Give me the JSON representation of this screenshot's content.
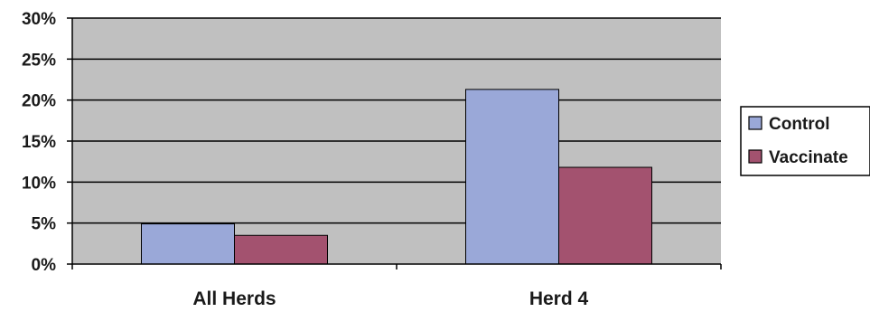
{
  "chart_data": {
    "type": "bar",
    "categories": [
      "All Herds",
      "Herd 4"
    ],
    "series": [
      {
        "name": "Control",
        "values": [
          4.9,
          21.3
        ],
        "color": "#9aa8d8"
      },
      {
        "name": "Vaccinate",
        "values": [
          3.5,
          11.8
        ],
        "color": "#a3526f"
      }
    ],
    "y_ticks": [
      "0%",
      "5%",
      "10%",
      "15%",
      "20%",
      "25%",
      "30%"
    ],
    "ylim": [
      0,
      30
    ],
    "grid": true,
    "plot_background": "#c0c0c0",
    "legend_position": "right",
    "title": "",
    "xlabel": "",
    "ylabel": ""
  }
}
